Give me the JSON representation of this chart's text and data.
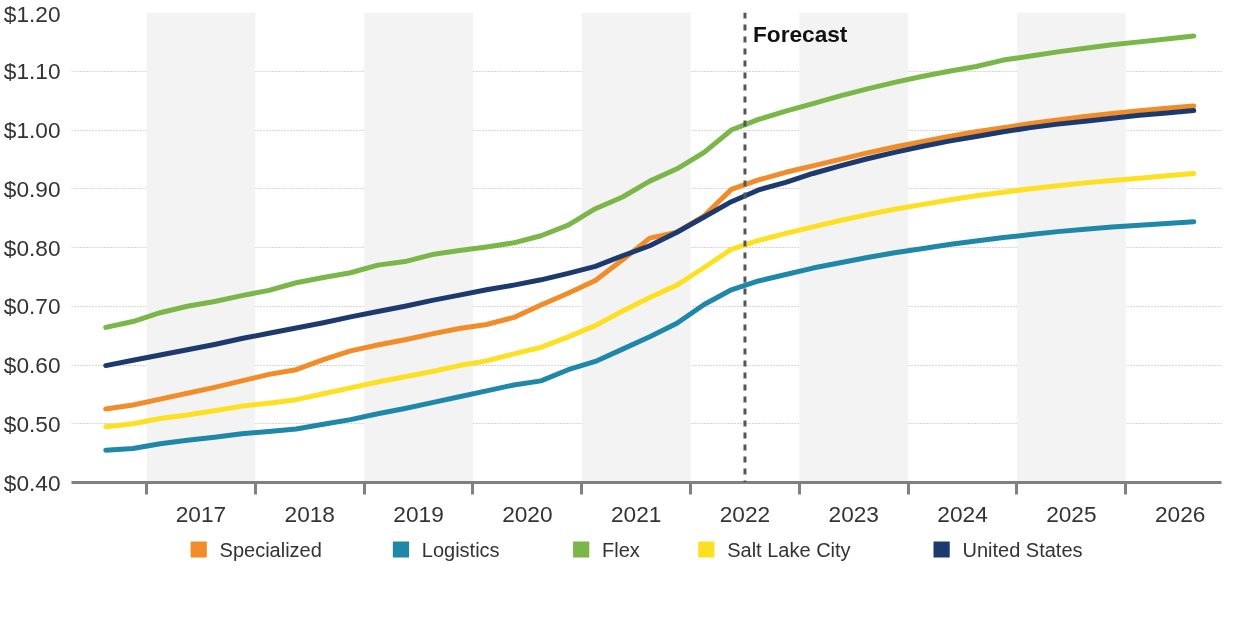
{
  "chart_data": {
    "type": "line",
    "x": [
      2016.625,
      2016.875,
      2017.125,
      2017.375,
      2017.625,
      2017.875,
      2018.125,
      2018.375,
      2018.625,
      2018.875,
      2019.125,
      2019.375,
      2019.625,
      2019.875,
      2020.125,
      2020.375,
      2020.625,
      2020.875,
      2021.125,
      2021.375,
      2021.625,
      2021.875,
      2022.125,
      2022.375,
      2022.625,
      2022.875,
      2023.125,
      2023.375,
      2023.625,
      2023.875,
      2024.125,
      2024.375,
      2024.625,
      2024.875,
      2025.125,
      2025.375,
      2025.625,
      2025.875,
      2026.125,
      2026.375,
      2026.625
    ],
    "series": [
      {
        "name": "Specialized",
        "color": "#f28c28",
        "values": [
          0.525,
          0.532,
          0.542,
          0.552,
          0.562,
          0.573,
          0.584,
          0.592,
          0.609,
          0.624,
          0.634,
          0.643,
          0.653,
          0.662,
          0.669,
          0.681,
          0.702,
          0.722,
          0.744,
          0.779,
          0.816,
          0.826,
          0.854,
          0.899,
          0.915,
          0.928,
          0.939,
          0.95,
          0.961,
          0.971,
          0.98,
          0.989,
          0.997,
          1.004,
          1.011,
          1.017,
          1.023,
          1.028,
          1.033,
          1.037,
          1.041
        ]
      },
      {
        "name": "Logistics",
        "color": "#1f87a8",
        "values": [
          0.455,
          0.458,
          0.466,
          0.472,
          0.477,
          0.483,
          0.487,
          0.491,
          0.499,
          0.507,
          0.517,
          0.526,
          0.536,
          0.546,
          0.556,
          0.566,
          0.573,
          0.592,
          0.606,
          0.627,
          0.648,
          0.671,
          0.703,
          0.728,
          0.743,
          0.754,
          0.765,
          0.774,
          0.783,
          0.791,
          0.798,
          0.805,
          0.811,
          0.817,
          0.822,
          0.827,
          0.831,
          0.835,
          0.838,
          0.841,
          0.844
        ]
      },
      {
        "name": "Flex",
        "color": "#7ab648",
        "values": [
          0.664,
          0.674,
          0.689,
          0.7,
          0.708,
          0.718,
          0.727,
          0.74,
          0.749,
          0.757,
          0.77,
          0.776,
          0.788,
          0.795,
          0.801,
          0.808,
          0.82,
          0.838,
          0.866,
          0.886,
          0.913,
          0.934,
          0.962,
          1.0,
          1.018,
          1.032,
          1.045,
          1.058,
          1.07,
          1.081,
          1.091,
          1.1,
          1.108,
          1.119,
          1.126,
          1.133,
          1.139,
          1.145,
          1.15,
          1.155,
          1.16
        ]
      },
      {
        "name": "Salt Lake City",
        "color": "#fde021",
        "values": [
          0.495,
          0.5,
          0.509,
          0.515,
          0.522,
          0.53,
          0.535,
          0.541,
          0.551,
          0.561,
          0.571,
          0.58,
          0.589,
          0.599,
          0.607,
          0.619,
          0.63,
          0.648,
          0.667,
          0.692,
          0.715,
          0.736,
          0.766,
          0.797,
          0.812,
          0.824,
          0.835,
          0.846,
          0.856,
          0.865,
          0.873,
          0.881,
          0.888,
          0.894,
          0.9,
          0.905,
          0.91,
          0.914,
          0.918,
          0.922,
          0.926
        ]
      },
      {
        "name": "United States",
        "color": "#1c3a6e",
        "values": [
          0.599,
          0.608,
          0.617,
          0.626,
          0.635,
          0.645,
          0.654,
          0.663,
          0.672,
          0.682,
          0.691,
          0.7,
          0.71,
          0.719,
          0.728,
          0.736,
          0.745,
          0.756,
          0.768,
          0.786,
          0.803,
          0.826,
          0.852,
          0.878,
          0.898,
          0.911,
          0.926,
          0.939,
          0.951,
          0.962,
          0.972,
          0.981,
          0.989,
          0.997,
          1.004,
          1.01,
          1.015,
          1.02,
          1.025,
          1.029,
          1.033
        ]
      }
    ],
    "xlim": [
      2016.31,
      2026.88
    ],
    "xticks": [
      {
        "value": 2017,
        "label": null
      },
      {
        "value": 2018,
        "label": null
      },
      {
        "value": 2019,
        "label": null
      },
      {
        "value": 2020,
        "label": null
      },
      {
        "value": 2021,
        "label": null
      },
      {
        "value": 2022,
        "label": null
      },
      {
        "value": 2023,
        "label": null
      },
      {
        "value": 2024,
        "label": null
      },
      {
        "value": 2025,
        "label": null
      },
      {
        "value": 2026,
        "label": null
      },
      {
        "value": 2017.5,
        "label": "2017"
      },
      {
        "value": 2018.5,
        "label": "2018"
      },
      {
        "value": 2019.5,
        "label": "2019"
      },
      {
        "value": 2020.5,
        "label": "2020"
      },
      {
        "value": 2021.5,
        "label": "2021"
      },
      {
        "value": 2022.5,
        "label": "2022"
      },
      {
        "value": 2023.5,
        "label": "2023"
      },
      {
        "value": 2024.5,
        "label": "2024"
      },
      {
        "value": 2025.5,
        "label": "2025"
      },
      {
        "value": 2026.5,
        "label": "2026"
      }
    ],
    "ylim": [
      0.4,
      1.2
    ],
    "yticks": [
      {
        "value": 0.4,
        "label": "$0.40"
      },
      {
        "value": 0.5,
        "label": "$0.50"
      },
      {
        "value": 0.6,
        "label": "$0.60"
      },
      {
        "value": 0.7,
        "label": "$0.70"
      },
      {
        "value": 0.8,
        "label": "$0.80"
      },
      {
        "value": 0.9,
        "label": "$0.90"
      },
      {
        "value": 1.0,
        "label": "$1.00"
      },
      {
        "value": 1.1,
        "label": "$1.10"
      },
      {
        "value": 1.2,
        "label": "$1.20"
      }
    ],
    "grid": "y",
    "legend": "bottom",
    "line_style": "solid",
    "marker": "none",
    "ref_lines": [
      {
        "axis": "x",
        "value": 2022.5,
        "label": "Forecast",
        "color": "#555555",
        "line_style": "dashed"
      }
    ],
    "bands": [
      {
        "axis": "x",
        "from": 2017,
        "to": 2018,
        "color": "#f3f3f3"
      },
      {
        "axis": "x",
        "from": 2019,
        "to": 2020,
        "color": "#f3f3f3"
      },
      {
        "axis": "x",
        "from": 2021,
        "to": 2022,
        "color": "#f3f3f3"
      },
      {
        "axis": "x",
        "from": 2023,
        "to": 2024,
        "color": "#f3f3f3"
      },
      {
        "axis": "x",
        "from": 2025,
        "to": 2026,
        "color": "#f3f3f3"
      }
    ]
  }
}
